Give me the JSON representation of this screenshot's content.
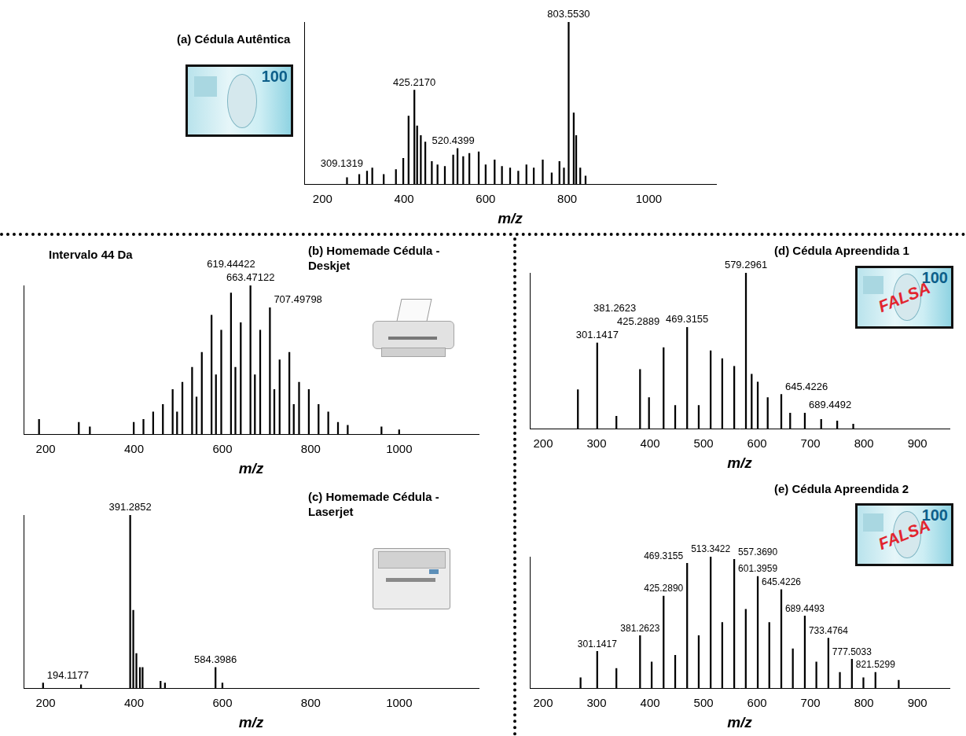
{
  "chart_data": [
    {
      "type": "bar",
      "title": "(a) Cédula Autêntica",
      "x_label": "m/z",
      "note_text": "100",
      "x": [
        260,
        290,
        309.1319,
        322,
        350,
        380,
        398,
        411,
        425.217,
        432,
        441,
        452,
        468,
        482,
        500,
        520.4399,
        531,
        545,
        560,
        583,
        600,
        622,
        640,
        660,
        680,
        700,
        718,
        740,
        762,
        781,
        792,
        803.553,
        816,
        822,
        832,
        845
      ],
      "values": [
        4,
        6,
        8,
        10,
        6,
        9,
        16,
        42,
        58,
        36,
        30,
        26,
        14,
        12,
        11,
        18,
        22,
        17,
        19,
        20,
        12,
        15,
        11,
        10,
        8,
        12,
        10,
        15,
        7,
        14,
        10,
        100,
        44,
        30,
        10,
        5
      ],
      "color": "#000000",
      "xlim": [
        155,
        1165
      ],
      "xticks": [
        200,
        400,
        600,
        800,
        1000
      ],
      "ylim": [
        0,
        100
      ],
      "tick_labels": "x",
      "grid": false,
      "annotations": [
        {
          "x": 309.1319,
          "text": "309.1319"
        },
        {
          "x": 425.217,
          "text": "425.2170"
        },
        {
          "x": 520.4399,
          "text": "520.4399"
        },
        {
          "x": 803.553,
          "text": "803.5530"
        }
      ]
    },
    {
      "type": "bar",
      "title": "(b) Homemade Cédula - Deskjet",
      "x_label": "m/z",
      "text_annotation": "Intervalo 44 Da",
      "x": [
        185,
        275,
        300,
        399.3,
        421.3,
        443.3,
        465.3,
        487.4,
        497.4,
        509.4,
        531.4,
        541.4,
        553.4,
        575.4,
        585.4,
        597.4,
        619.44422,
        629.4,
        641.5,
        663.47122,
        673.5,
        685.5,
        707.49798,
        717.5,
        729.5,
        751.5,
        761.5,
        773.5,
        795.6,
        817.6,
        839.6,
        861.6,
        883.6,
        960,
        1000
      ],
      "values": [
        10,
        8,
        5,
        8,
        10,
        15,
        20,
        30,
        15,
        35,
        45,
        25,
        55,
        80,
        40,
        70,
        95,
        45,
        75,
        100,
        40,
        70,
        85,
        30,
        50,
        55,
        20,
        35,
        30,
        20,
        15,
        8,
        6,
        5,
        3
      ],
      "color": "#000000",
      "xlim": [
        150,
        1180
      ],
      "xticks": [
        200,
        400,
        600,
        800,
        1000
      ],
      "ylim": [
        0,
        100
      ],
      "tick_labels": "x",
      "grid": false,
      "annotations": [
        {
          "x": 619.44422,
          "text": "619.44422"
        },
        {
          "x": 663.47122,
          "text": "663.47122"
        },
        {
          "x": 707.49798,
          "text": "707.49798"
        }
      ]
    },
    {
      "type": "bar",
      "title": "(c) Homemade Cédula - Laserjet",
      "x_label": "m/z",
      "x": [
        194.1177,
        280,
        391.2852,
        398.3,
        405.3,
        413.3,
        419.3,
        460,
        470,
        584.3986,
        600
      ],
      "values": [
        3,
        2,
        100,
        45,
        20,
        12,
        12,
        4,
        3,
        12,
        3
      ],
      "color": "#000000",
      "xlim": [
        150,
        1180
      ],
      "xticks": [
        200,
        400,
        600,
        800,
        1000
      ],
      "ylim": [
        0,
        100
      ],
      "tick_labels": "x",
      "grid": false,
      "annotations": [
        {
          "x": 194.1177,
          "text": "194.1177"
        },
        {
          "x": 391.2852,
          "text": "391.2852"
        },
        {
          "x": 584.3986,
          "text": "584.3986"
        }
      ]
    },
    {
      "type": "bar",
      "title": "(d) Cédula Apreendida 1",
      "x_label": "m/z",
      "note_text": "100",
      "stamp": "FALSA",
      "x": [
        265,
        301.1417,
        337,
        381.2623,
        398,
        425.2889,
        447,
        469.3155,
        491,
        513.3,
        535,
        557.4,
        579.2961,
        590,
        601.4,
        620,
        645.4226,
        662,
        689.4492,
        720,
        750,
        780
      ],
      "values": [
        25,
        55,
        8,
        38,
        20,
        52,
        15,
        65,
        15,
        50,
        45,
        40,
        100,
        35,
        30,
        20,
        22,
        10,
        10,
        6,
        5,
        3
      ],
      "color": "#000000",
      "xlim": [
        175,
        960
      ],
      "xticks": [
        200,
        300,
        400,
        500,
        600,
        700,
        800,
        900
      ],
      "ylim": [
        0,
        100
      ],
      "tick_labels": "x",
      "grid": false,
      "annotations": [
        {
          "x": 301.1417,
          "text": "301.1417"
        },
        {
          "x": 381.2623,
          "text": "381.2623"
        },
        {
          "x": 425.2889,
          "text": "425.2889"
        },
        {
          "x": 469.3155,
          "text": "469.3155"
        },
        {
          "x": 579.2961,
          "text": "579.2961"
        },
        {
          "x": 645.4226,
          "text": "645.4226"
        },
        {
          "x": 689.4492,
          "text": "689.4492"
        }
      ]
    },
    {
      "type": "bar",
      "title": "(e) Cédula Apreendida 2",
      "x_label": "m/z",
      "note_text": "100",
      "stamp": "FALSA",
      "x": [
        270,
        301.1417,
        337,
        381.2623,
        403,
        425.289,
        447,
        469.3155,
        491,
        513.3422,
        535,
        557.369,
        579,
        601.3959,
        623,
        645.4226,
        667,
        689.4493,
        711,
        733.4764,
        755,
        777.5033,
        799,
        821.5299,
        865
      ],
      "values": [
        8,
        28,
        15,
        40,
        20,
        70,
        25,
        95,
        40,
        100,
        50,
        98,
        60,
        85,
        50,
        75,
        30,
        55,
        20,
        38,
        12,
        22,
        8,
        12,
        6
      ],
      "color": "#000000",
      "xlim": [
        175,
        960
      ],
      "xticks": [
        200,
        300,
        400,
        500,
        600,
        700,
        800,
        900
      ],
      "ylim": [
        0,
        100
      ],
      "tick_labels": "x",
      "grid": false,
      "annotations": [
        {
          "x": 301.1417,
          "text": "301.1417"
        },
        {
          "x": 381.2623,
          "text": "381.2623"
        },
        {
          "x": 425.289,
          "text": "425.2890"
        },
        {
          "x": 469.3155,
          "text": "469.3155"
        },
        {
          "x": 513.3422,
          "text": "513.3422"
        },
        {
          "x": 557.369,
          "text": "557.3690"
        },
        {
          "x": 601.3959,
          "text": "601.3959"
        },
        {
          "x": 645.4226,
          "text": "645.4226"
        },
        {
          "x": 689.4493,
          "text": "689.4493"
        },
        {
          "x": 733.4764,
          "text": "733.4764"
        },
        {
          "x": 777.5033,
          "text": "777.5033"
        },
        {
          "x": 821.5299,
          "text": "821.5299"
        }
      ]
    }
  ]
}
